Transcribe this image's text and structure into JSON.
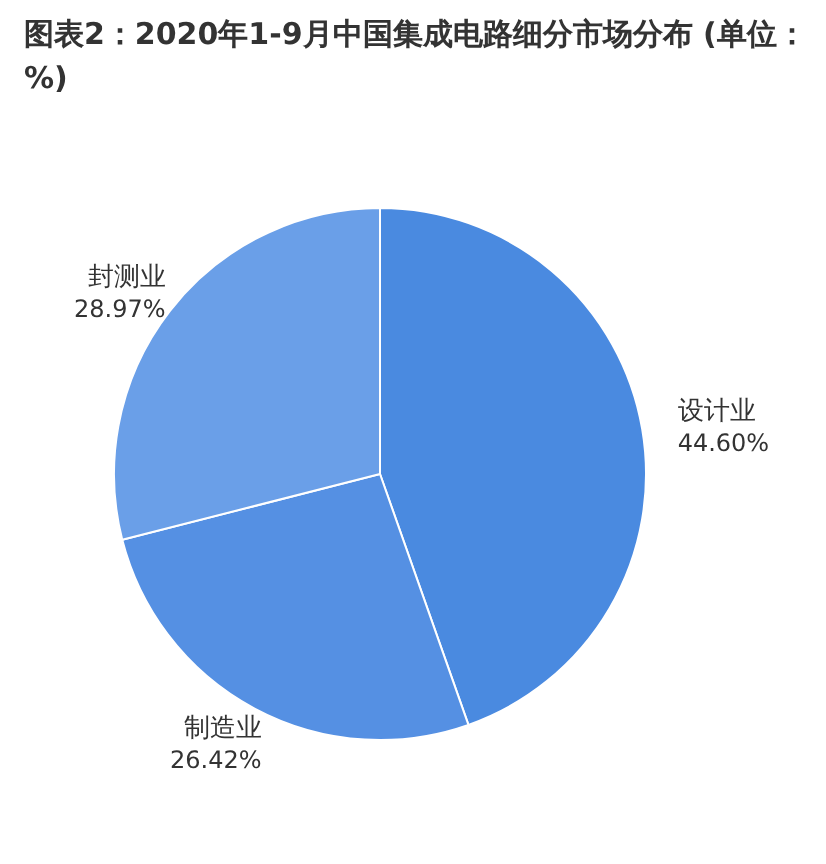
{
  "chart_data": {
    "type": "pie",
    "title": "图表2：2020年1-9月中国集成电路细分市场分布 (单位：%)",
    "categories": [
      "设计业",
      "制造业",
      "封测业"
    ],
    "values": [
      44.6,
      26.42,
      28.97
    ],
    "value_labels": [
      "44.60%",
      "26.42%",
      "28.97%"
    ],
    "colors": [
      "#4a8ae0",
      "#5590e3",
      "#6a9fe8"
    ]
  }
}
